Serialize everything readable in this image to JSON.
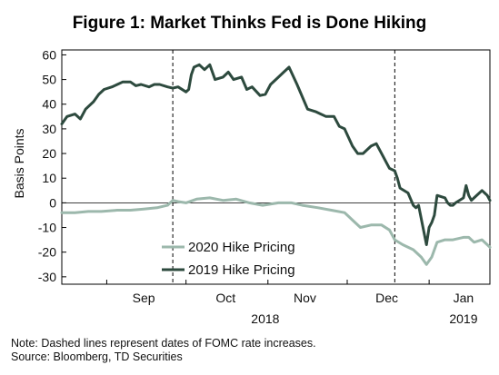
{
  "colors": {
    "series_2019": "#2d4a3e",
    "series_2020": "#9cb8ac",
    "axis": "#000000",
    "background": "#ffffff"
  },
  "footer": {
    "note": "Note: Dashed lines represent dates of FOMC rate increases.",
    "source": "Source: Bloomberg, TD Securities"
  },
  "chart_data": {
    "type": "line",
    "title": "Figure 1: Market Thinks Fed is Done Hiking",
    "ylabel": "Basis Points",
    "ylim": [
      -33,
      62
    ],
    "yticks": [
      -30,
      -20,
      -10,
      0,
      10,
      20,
      30,
      40,
      50,
      60
    ],
    "xlim": [
      "2018-08-15",
      "2019-01-24"
    ],
    "month_labels": [
      {
        "label": "Sep",
        "x": "2018-09-15"
      },
      {
        "label": "Oct",
        "x": "2018-10-16"
      },
      {
        "label": "Nov",
        "x": "2018-11-15"
      },
      {
        "label": "Dec",
        "x": "2018-12-16"
      },
      {
        "label": "Jan",
        "x": "2019-01-14"
      }
    ],
    "month_dividers": [
      "2018-09-01",
      "2018-10-01",
      "2018-11-01",
      "2018-12-01",
      "2019-01-01"
    ],
    "year_labels": [
      {
        "label": "2018",
        "x": "2018-10-31"
      },
      {
        "label": "2019",
        "x": "2019-01-14"
      }
    ],
    "fomc_dates": [
      "2018-09-26",
      "2018-12-19"
    ],
    "legend_position": "center-left",
    "series": [
      {
        "name": "2019 Hike Pricing",
        "color_key": "series_2019",
        "points": [
          [
            "2018-08-15",
            32
          ],
          [
            "2018-08-17",
            35
          ],
          [
            "2018-08-20",
            36
          ],
          [
            "2018-08-22",
            34
          ],
          [
            "2018-08-24",
            38
          ],
          [
            "2018-08-27",
            41
          ],
          [
            "2018-08-29",
            44
          ],
          [
            "2018-08-31",
            46
          ],
          [
            "2018-09-03",
            47
          ],
          [
            "2018-09-05",
            48
          ],
          [
            "2018-09-07",
            49
          ],
          [
            "2018-09-10",
            49
          ],
          [
            "2018-09-12",
            47.5
          ],
          [
            "2018-09-14",
            48
          ],
          [
            "2018-09-17",
            47
          ],
          [
            "2018-09-19",
            48
          ],
          [
            "2018-09-21",
            48
          ],
          [
            "2018-09-24",
            47
          ],
          [
            "2018-09-26",
            46.5
          ],
          [
            "2018-09-28",
            47
          ],
          [
            "2018-10-01",
            45
          ],
          [
            "2018-10-02",
            46
          ],
          [
            "2018-10-03",
            52
          ],
          [
            "2018-10-04",
            55
          ],
          [
            "2018-10-06",
            56
          ],
          [
            "2018-10-08",
            54
          ],
          [
            "2018-10-10",
            56
          ],
          [
            "2018-10-12",
            50
          ],
          [
            "2018-10-15",
            51
          ],
          [
            "2018-10-17",
            53
          ],
          [
            "2018-10-19",
            50
          ],
          [
            "2018-10-22",
            51
          ],
          [
            "2018-10-24",
            46
          ],
          [
            "2018-10-26",
            47
          ],
          [
            "2018-10-29",
            43.5
          ],
          [
            "2018-10-31",
            44
          ],
          [
            "2018-11-02",
            48
          ],
          [
            "2018-11-05",
            51
          ],
          [
            "2018-11-07",
            53
          ],
          [
            "2018-11-09",
            55
          ],
          [
            "2018-11-12",
            48
          ],
          [
            "2018-11-14",
            43
          ],
          [
            "2018-11-16",
            38
          ],
          [
            "2018-11-19",
            37
          ],
          [
            "2018-11-21",
            36
          ],
          [
            "2018-11-23",
            35
          ],
          [
            "2018-11-26",
            35
          ],
          [
            "2018-11-28",
            31
          ],
          [
            "2018-11-30",
            30
          ],
          [
            "2018-12-03",
            23
          ],
          [
            "2018-12-05",
            20
          ],
          [
            "2018-12-07",
            20
          ],
          [
            "2018-12-10",
            23
          ],
          [
            "2018-12-12",
            24
          ],
          [
            "2018-12-14",
            20
          ],
          [
            "2018-12-17",
            14
          ],
          [
            "2018-12-19",
            13
          ],
          [
            "2018-12-20",
            10
          ],
          [
            "2018-12-21",
            6
          ],
          [
            "2018-12-24",
            4
          ],
          [
            "2018-12-26",
            -1
          ],
          [
            "2018-12-27",
            -2
          ],
          [
            "2018-12-28",
            -1
          ],
          [
            "2018-12-31",
            -17
          ],
          [
            "2019-01-01",
            -10
          ],
          [
            "2019-01-02",
            -8
          ],
          [
            "2019-01-03",
            -5
          ],
          [
            "2019-01-04",
            3
          ],
          [
            "2019-01-07",
            2
          ],
          [
            "2019-01-08",
            0
          ],
          [
            "2019-01-09",
            -1
          ],
          [
            "2019-01-10",
            -1
          ],
          [
            "2019-01-11",
            0
          ],
          [
            "2019-01-14",
            2
          ],
          [
            "2019-01-15",
            7
          ],
          [
            "2019-01-16",
            3
          ],
          [
            "2019-01-17",
            1
          ],
          [
            "2019-01-18",
            2
          ],
          [
            "2019-01-21",
            5
          ],
          [
            "2019-01-22",
            4
          ],
          [
            "2019-01-23",
            3
          ],
          [
            "2019-01-24",
            1
          ]
        ]
      },
      {
        "name": "2020 Hike Pricing",
        "color_key": "series_2020",
        "points": [
          [
            "2018-08-15",
            -4
          ],
          [
            "2018-08-20",
            -4
          ],
          [
            "2018-08-25",
            -3.5
          ],
          [
            "2018-08-30",
            -3.5
          ],
          [
            "2018-09-05",
            -3
          ],
          [
            "2018-09-10",
            -3
          ],
          [
            "2018-09-15",
            -2.5
          ],
          [
            "2018-09-20",
            -2
          ],
          [
            "2018-09-24",
            -1
          ],
          [
            "2018-09-26",
            1
          ],
          [
            "2018-09-28",
            0.5
          ],
          [
            "2018-10-01",
            0
          ],
          [
            "2018-10-05",
            1.5
          ],
          [
            "2018-10-10",
            2
          ],
          [
            "2018-10-15",
            1
          ],
          [
            "2018-10-20",
            1.5
          ],
          [
            "2018-10-25",
            0
          ],
          [
            "2018-10-30",
            -1
          ],
          [
            "2018-11-05",
            0
          ],
          [
            "2018-11-10",
            0
          ],
          [
            "2018-11-14",
            -1
          ],
          [
            "2018-11-20",
            -2
          ],
          [
            "2018-11-25",
            -3
          ],
          [
            "2018-11-30",
            -4
          ],
          [
            "2018-12-03",
            -7
          ],
          [
            "2018-12-06",
            -10
          ],
          [
            "2018-12-10",
            -9
          ],
          [
            "2018-12-14",
            -9
          ],
          [
            "2018-12-17",
            -11
          ],
          [
            "2018-12-19",
            -15
          ],
          [
            "2018-12-22",
            -17
          ],
          [
            "2018-12-26",
            -19
          ],
          [
            "2018-12-29",
            -22
          ],
          [
            "2018-12-31",
            -25
          ],
          [
            "2019-01-02",
            -22
          ],
          [
            "2019-01-04",
            -16
          ],
          [
            "2019-01-07",
            -15
          ],
          [
            "2019-01-10",
            -15
          ],
          [
            "2019-01-14",
            -14
          ],
          [
            "2019-01-16",
            -14
          ],
          [
            "2019-01-18",
            -16
          ],
          [
            "2019-01-21",
            -15
          ],
          [
            "2019-01-23",
            -17
          ],
          [
            "2019-01-24",
            -18
          ]
        ]
      }
    ]
  }
}
